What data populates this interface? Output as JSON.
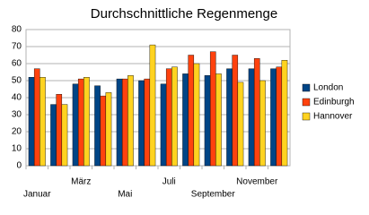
{
  "chart_data": {
    "type": "bar",
    "title": "Durchschnittliche Regenmenge",
    "categories": [
      "Januar",
      null,
      "März",
      null,
      "Mai",
      null,
      "Juli",
      null,
      "September",
      null,
      "November",
      null
    ],
    "series": [
      {
        "name": "London",
        "color": "#004586",
        "values": [
          52,
          36,
          48,
          47,
          51,
          50,
          48,
          54,
          53,
          57,
          57,
          57
        ]
      },
      {
        "name": "Edinburgh",
        "color": "#ff420e",
        "values": [
          57,
          42,
          51,
          41,
          51,
          51,
          57,
          65,
          67,
          65,
          63,
          58
        ]
      },
      {
        "name": "Hannover",
        "color": "#ffd320",
        "values": [
          52,
          36,
          52,
          43,
          53,
          71,
          58,
          60,
          54,
          49,
          50,
          62
        ]
      }
    ],
    "ylim": [
      0,
      80
    ],
    "yticks": [
      0,
      10,
      20,
      30,
      40,
      50,
      60,
      70,
      80
    ],
    "grid": true,
    "legend": "right"
  }
}
